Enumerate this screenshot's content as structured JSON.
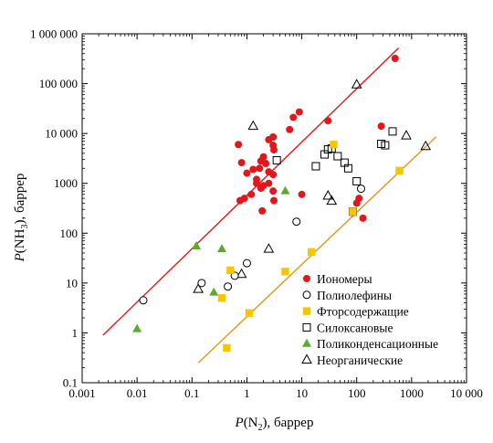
{
  "chart_data": {
    "type": "scatter",
    "title": "",
    "xlabel": "P(N₂), баррер",
    "ylabel": "P(NH₃), баррер",
    "xlabel_parts": {
      "italic": "P",
      "open": "(N",
      "sub": "2",
      "close": "), баррер"
    },
    "ylabel_parts": {
      "italic": "P",
      "open": "(NH",
      "sub": "3",
      "close": "), баррер"
    },
    "x_scale": "log",
    "y_scale": "log",
    "xlim": [
      0.001,
      10000
    ],
    "ylim": [
      0.1,
      1000000
    ],
    "x_ticks": [
      0.001,
      0.01,
      0.1,
      1,
      10,
      100,
      1000,
      10000
    ],
    "x_tick_labels": [
      "0.001",
      "0.01",
      "0.1",
      "1",
      "10",
      "100",
      "1000",
      "10 000"
    ],
    "y_ticks": [
      0.1,
      1,
      10,
      100,
      1000,
      10000,
      100000,
      1000000
    ],
    "y_tick_labels": [
      "0.1",
      "1",
      "10",
      "100",
      "1000",
      "10 000",
      "100 000",
      "1 000 000"
    ],
    "grid": false,
    "legend_position": "bottom-right",
    "series": [
      {
        "name": "Иономеры",
        "marker": "circle-filled",
        "color": "#e3161c",
        "points": [
          [
            0.7,
            6000
          ],
          [
            0.8,
            2600
          ],
          [
            1.0,
            1600
          ],
          [
            1.3,
            1900
          ],
          [
            1.5,
            1000
          ],
          [
            2.0,
            3400
          ],
          [
            2.5,
            7500
          ],
          [
            3.0,
            8500
          ],
          [
            3.0,
            5800
          ],
          [
            3.1,
            4700
          ],
          [
            1.8,
            2800
          ],
          [
            2.2,
            2500
          ],
          [
            3.0,
            1500
          ],
          [
            2.5,
            1000
          ],
          [
            1.8,
            800
          ],
          [
            1.2,
            600
          ],
          [
            0.75,
            450
          ],
          [
            0.9,
            500
          ],
          [
            1.9,
            280
          ],
          [
            3.0,
            700
          ],
          [
            3.1,
            450
          ],
          [
            6.0,
            12000
          ],
          [
            7.0,
            21000
          ],
          [
            9.0,
            27000
          ],
          [
            10.0,
            600
          ],
          [
            30.0,
            18000
          ],
          [
            100.0,
            400
          ],
          [
            110.0,
            500
          ],
          [
            130.0,
            200
          ],
          [
            280.0,
            14000
          ],
          [
            500.0,
            320000
          ],
          [
            1.5,
            1200
          ],
          [
            2.0,
            900
          ],
          [
            2.5,
            1700
          ],
          [
            1.7,
            2000
          ]
        ]
      },
      {
        "name": "Полиолефины",
        "marker": "circle-open",
        "color": "#000000",
        "points": [
          [
            0.013,
            4.5
          ],
          [
            0.15,
            10
          ],
          [
            0.45,
            8.5
          ],
          [
            0.6,
            14
          ],
          [
            1.0,
            25
          ],
          [
            8.0,
            170
          ],
          [
            120.0,
            780
          ]
        ]
      },
      {
        "name": "Фторсодержащие",
        "marker": "square-filled",
        "color": "#f7c600",
        "points": [
          [
            0.43,
            0.5
          ],
          [
            0.35,
            5
          ],
          [
            0.5,
            18
          ],
          [
            1.1,
            2.5
          ],
          [
            5.0,
            17
          ],
          [
            15.0,
            42
          ],
          [
            38.0,
            6000
          ],
          [
            85.0,
            270
          ],
          [
            600.0,
            1800
          ]
        ]
      },
      {
        "name": "Силоксановые",
        "marker": "square-open",
        "color": "#000000",
        "points": [
          [
            3.5,
            2900
          ],
          [
            18.0,
            2200
          ],
          [
            26.0,
            3800
          ],
          [
            30.0,
            4800
          ],
          [
            35.0,
            5000
          ],
          [
            45.0,
            3500
          ],
          [
            60.0,
            2600
          ],
          [
            70.0,
            2000
          ],
          [
            85.0,
            270
          ],
          [
            100.0,
            1100
          ],
          [
            280.0,
            6200
          ],
          [
            330.0,
            5800
          ],
          [
            450.0,
            11000
          ]
        ]
      },
      {
        "name": "Поликонденсационные",
        "marker": "triangle-filled",
        "color": "#5aab2e",
        "points": [
          [
            0.01,
            1.2
          ],
          [
            0.12,
            55
          ],
          [
            0.25,
            6.5
          ],
          [
            0.35,
            48
          ],
          [
            5.0,
            700
          ]
        ]
      },
      {
        "name": "Неорганические",
        "marker": "triangle-open",
        "color": "#000000",
        "points": [
          [
            0.13,
            7.5
          ],
          [
            0.8,
            15
          ],
          [
            1.3,
            14000
          ],
          [
            2.5,
            48
          ],
          [
            30.0,
            560
          ],
          [
            35.0,
            440
          ],
          [
            100.0,
            95000
          ],
          [
            800.0,
            9000
          ],
          [
            1800.0,
            5500
          ]
        ]
      }
    ],
    "lines": [
      {
        "color": "#e3161c",
        "from": [
          0.0024,
          0.9
        ],
        "to": [
          580,
          520000
        ]
      },
      {
        "color": "#e8941a",
        "from": [
          0.13,
          0.25
        ],
        "to": [
          2800,
          8600
        ]
      }
    ]
  }
}
